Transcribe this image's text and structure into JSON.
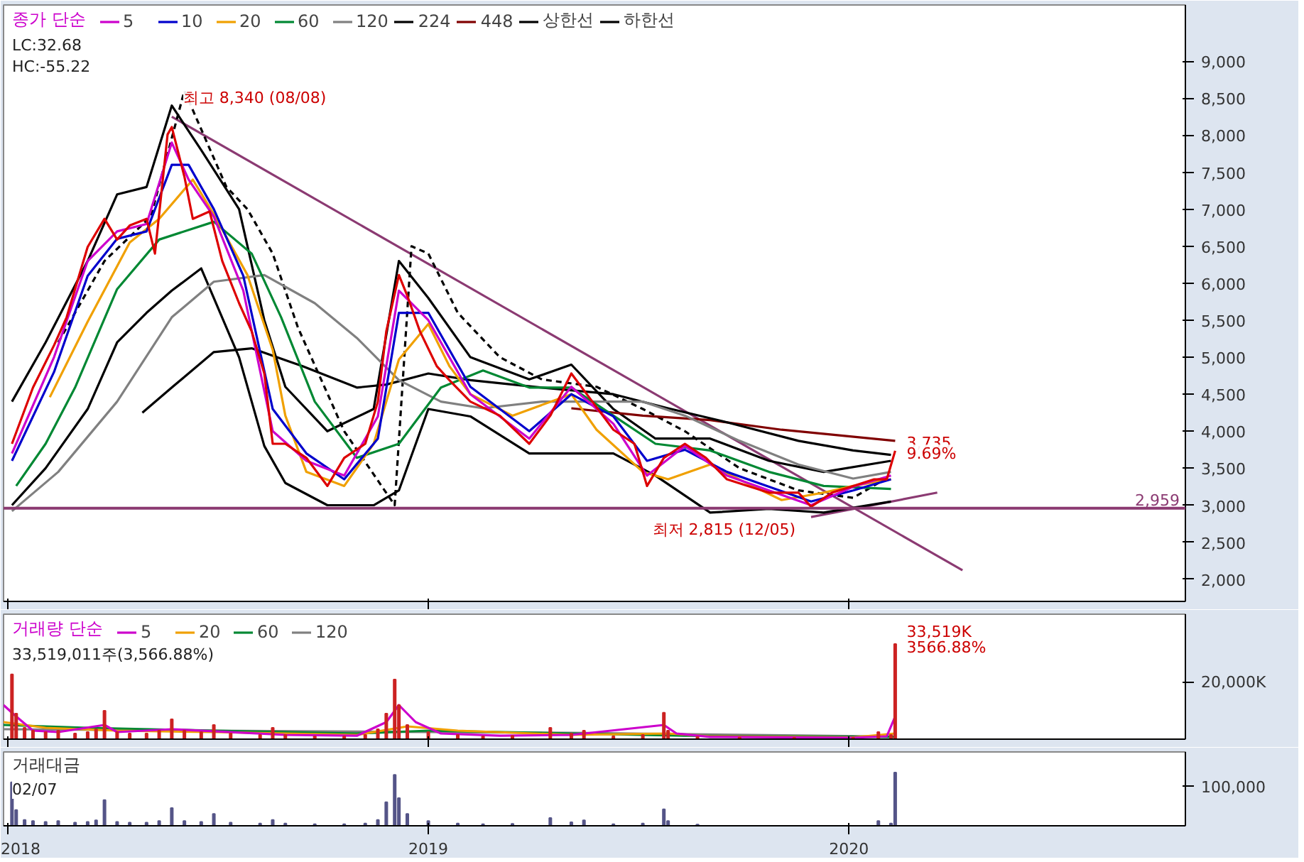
{
  "chart_data": [
    {
      "type": "line",
      "legend_title": "종가 단순",
      "legend": "top left",
      "xlim": [
        2017.99,
        2020.8
      ],
      "xticks": [
        2018,
        2019,
        2020
      ],
      "tick_labels": "y",
      "ylim": [
        1700,
        9760
      ],
      "yticks": [
        {
          "value": 2000,
          "label": "2,000"
        },
        {
          "value": 2500,
          "label": "2,500"
        },
        {
          "value": 3000,
          "label": "3,000"
        },
        {
          "value": 3500,
          "label": "3,500"
        },
        {
          "value": 4000,
          "label": "4,000"
        },
        {
          "value": 4500,
          "label": "4,500"
        },
        {
          "value": 5000,
          "label": "5,000"
        },
        {
          "value": 5500,
          "label": "5,500"
        },
        {
          "value": 6000,
          "label": "6,000"
        },
        {
          "value": 6500,
          "label": "6,500"
        },
        {
          "value": 7000,
          "label": "7,000"
        },
        {
          "value": 7500,
          "label": "7,500"
        },
        {
          "value": 8000,
          "label": "8,000"
        },
        {
          "value": 8500,
          "label": "8,500"
        },
        {
          "value": 9000,
          "label": "9,000"
        }
      ],
      "series": [
        {
          "color": "#dd0000",
          "x": [
            2018.01,
            2018.06,
            2018.11,
            2018.14,
            2018.19,
            2018.23,
            2018.26,
            2018.29,
            2018.33,
            2018.35,
            2018.38,
            2018.39,
            2018.42,
            2018.44,
            2018.48,
            2018.51,
            2018.55,
            2018.58,
            2018.61,
            2018.63,
            2018.66,
            2018.71,
            2018.76,
            2018.8,
            2018.85,
            2018.88,
            2018.9,
            2018.93,
            2018.95,
            2018.98,
            2019.02,
            2019.05,
            2019.1,
            2019.17,
            2019.24,
            2019.29,
            2019.34,
            2019.39,
            2019.44,
            2019.49,
            2019.52,
            2019.56,
            2019.61,
            2019.66,
            2019.71,
            2019.76,
            2019.81,
            2019.88,
            2019.91,
            2019.96,
            2020.01,
            2020.06,
            2020.09,
            2020.11
          ],
          "values": [
            3830,
            4590,
            5160,
            5540,
            6490,
            6870,
            6590,
            6780,
            6870,
            6400,
            8010,
            8110,
            7440,
            6870,
            6970,
            6300,
            5730,
            5350,
            4780,
            3830,
            3830,
            3640,
            3260,
            3640,
            3830,
            4400,
            5350,
            6110,
            5830,
            5350,
            4880,
            4690,
            4400,
            4210,
            3830,
            4210,
            4780,
            4400,
            4020,
            3830,
            3260,
            3640,
            3830,
            3640,
            3350,
            3260,
            3170,
            3170,
            2980,
            3170,
            3260,
            3350,
            3350,
            3735
          ]
        },
        {
          "name": "5",
          "color": "#cc00cc",
          "x": [
            2018.01,
            2018.11,
            2018.19,
            2018.26,
            2018.33,
            2018.39,
            2018.43,
            2018.49,
            2018.56,
            2018.63,
            2018.71,
            2018.8,
            2018.88,
            2018.93,
            2019.0,
            2019.1,
            2019.24,
            2019.34,
            2019.44,
            2019.52,
            2019.61,
            2019.71,
            2019.81,
            2019.91,
            2020.01,
            2020.1
          ],
          "values": [
            3700,
            5000,
            6300,
            6700,
            6800,
            7900,
            7400,
            6900,
            5900,
            4000,
            3600,
            3400,
            4200,
            5900,
            5500,
            4500,
            3900,
            4600,
            4100,
            3400,
            3800,
            3400,
            3200,
            3000,
            3250,
            3400
          ]
        },
        {
          "name": "10",
          "color": "#0000cc",
          "x": [
            2018.01,
            2018.11,
            2018.19,
            2018.26,
            2018.33,
            2018.39,
            2018.43,
            2018.49,
            2018.56,
            2018.63,
            2018.71,
            2018.8,
            2018.88,
            2018.93,
            2019.0,
            2019.1,
            2019.24,
            2019.34,
            2019.44,
            2019.52,
            2019.61,
            2019.71,
            2019.81,
            2019.91,
            2020.01,
            2020.1
          ],
          "values": [
            3600,
            4800,
            6100,
            6600,
            6700,
            7600,
            7600,
            7000,
            6100,
            4300,
            3700,
            3350,
            3900,
            5600,
            5600,
            4600,
            4000,
            4500,
            4200,
            3600,
            3750,
            3450,
            3250,
            3050,
            3200,
            3350
          ]
        },
        {
          "name": "20",
          "color": "#f0a000",
          "x": [
            2018.1,
            2018.19,
            2018.29,
            2018.36,
            2018.44,
            2018.49,
            2018.57,
            2018.63,
            2018.66,
            2018.71,
            2018.8,
            2018.87,
            2018.93,
            2019.0,
            2019.05,
            2019.1,
            2019.2,
            2019.34,
            2019.4,
            2019.51,
            2019.57,
            2019.67,
            2019.77,
            2019.84,
            2019.94,
            2020.01,
            2020.1
          ],
          "values": [
            4460,
            5480,
            6550,
            6870,
            7400,
            6930,
            6110,
            5100,
            4210,
            3450,
            3260,
            3830,
            4970,
            5450,
            4880,
            4500,
            4210,
            4500,
            4020,
            3450,
            3350,
            3550,
            3260,
            3070,
            3170,
            3260,
            3350
          ]
        },
        {
          "name": "60",
          "color": "#008833",
          "x": [
            2018.02,
            2018.09,
            2018.16,
            2018.26,
            2018.36,
            2018.49,
            2018.58,
            2018.65,
            2018.73,
            2018.83,
            2018.93,
            2019.03,
            2019.13,
            2019.24,
            2019.34,
            2019.44,
            2019.54,
            2019.67,
            2019.81,
            2019.94,
            2020.1
          ],
          "values": [
            3260,
            3830,
            4590,
            5920,
            6590,
            6830,
            6400,
            5540,
            4400,
            3640,
            3830,
            4590,
            4820,
            4590,
            4590,
            4210,
            3830,
            3740,
            3450,
            3260,
            3220
          ]
        },
        {
          "name": "120",
          "color": "#808080",
          "x": [
            2018.01,
            2018.12,
            2018.26,
            2018.39,
            2018.49,
            2018.61,
            2018.73,
            2018.83,
            2018.93,
            2019.03,
            2019.13,
            2019.27,
            2019.4,
            2019.51,
            2019.61,
            2019.74,
            2019.88,
            2020.01,
            2020.1
          ],
          "values": [
            2920,
            3450,
            4400,
            5540,
            6020,
            6110,
            5730,
            5260,
            4690,
            4400,
            4310,
            4400,
            4400,
            4400,
            4210,
            3870,
            3550,
            3360,
            3450
          ]
        },
        {
          "name": "224",
          "color": "#000000",
          "x": [
            2018.32,
            2018.39,
            2018.49,
            2018.58,
            2018.7,
            2018.83,
            2018.9,
            2019.0,
            2019.1,
            2019.27,
            2019.44,
            2019.57,
            2019.71,
            2019.88,
            2020.01,
            2020.1
          ],
          "values": [
            4250,
            4590,
            5070,
            5120,
            4880,
            4590,
            4630,
            4780,
            4690,
            4590,
            4500,
            4310,
            4120,
            3870,
            3740,
            3680
          ]
        },
        {
          "name": "448",
          "color": "#800000",
          "x": [
            2019.34,
            2019.51,
            2019.67,
            2019.84,
            2020.11
          ],
          "values": [
            4310,
            4210,
            4150,
            4020,
            3870
          ]
        },
        {
          "name": "상한선",
          "color": "#000000",
          "x": [
            2018.01,
            2018.09,
            2018.19,
            2018.26,
            2018.33,
            2018.39,
            2018.46,
            2018.55,
            2018.61,
            2018.66,
            2018.76,
            2018.87,
            2018.93,
            2019.0,
            2019.1,
            2019.24,
            2019.34,
            2019.44,
            2019.54,
            2019.67,
            2019.81,
            2019.94,
            2020.1
          ],
          "values": [
            4400,
            5200,
            6300,
            7200,
            7300,
            8400,
            7800,
            7000,
            5500,
            4600,
            4000,
            4300,
            6300,
            5800,
            5000,
            4700,
            4900,
            4300,
            3900,
            3900,
            3600,
            3450,
            3600
          ]
        },
        {
          "name": "하한선",
          "color": "#000000",
          "x": [
            2018.01,
            2018.09,
            2018.19,
            2018.26,
            2018.33,
            2018.39,
            2018.46,
            2018.55,
            2018.61,
            2018.66,
            2018.76,
            2018.87,
            2018.93,
            2019.0,
            2019.1,
            2019.24,
            2019.34,
            2019.44,
            2019.54,
            2019.67,
            2019.81,
            2019.94,
            2020.1
          ],
          "values": [
            3000,
            3500,
            4300,
            5200,
            5600,
            5900,
            6200,
            5000,
            3800,
            3300,
            3000,
            3000,
            3200,
            4300,
            4200,
            3700,
            3700,
            3700,
            3400,
            2900,
            2950,
            2900,
            3050
          ]
        },
        {
          "color": "#000000",
          "line_style": "dashed",
          "x": [
            2018.12,
            2018.23,
            2018.34,
            2018.42,
            2018.52,
            2018.57,
            2018.63,
            2018.69,
            2018.8,
            2018.92,
            2018.96,
            2019.0,
            2019.07,
            2019.17,
            2019.27,
            2019.4,
            2019.51,
            2019.61,
            2019.74,
            2019.88,
            2020.01,
            2020.1
          ],
          "values": [
            5200,
            6300,
            6900,
            8600,
            7300,
            7000,
            6400,
            5400,
            4000,
            3000,
            6500,
            6400,
            5600,
            5000,
            4700,
            4600,
            4300,
            4000,
            3500,
            3200,
            3100,
            3400
          ]
        },
        {
          "color": "#8b3a72",
          "x": [
            2018.39,
            2020.27
          ],
          "values": [
            8250,
            2120
          ]
        },
        {
          "color": "#8b3a72",
          "x": [
            2019.91,
            2020.21
          ],
          "values": [
            2840,
            3170
          ]
        }
      ],
      "ref_lines": [
        {
          "axis": "y",
          "value": 2959,
          "label": "2,959",
          "color": "#8b3a72"
        }
      ],
      "annotations": [
        "LC:32.68",
        "HC:-55.22",
        {
          "text": "최고 8,340 (08/08)",
          "x": 2018.39,
          "y": 8340
        },
        {
          "text": "최저 2,815 (12/05)",
          "x": 2019.9,
          "y": 2815
        },
        {
          "text": "3,735",
          "x": 2020.11,
          "y": 3735
        },
        {
          "text": "9.69%",
          "x": 2020.11,
          "y": 3530
        }
      ]
    },
    {
      "type": "bar",
      "legend_title": "거래량 단순",
      "legend": "top left",
      "xlim": [
        2017.99,
        2020.8
      ],
      "xticks": [
        2018,
        2019,
        2020
      ],
      "tick_labels": "y",
      "ylim": [
        0,
        44000
      ],
      "yticks": [
        {
          "value": 20000,
          "label": "20,000K"
        }
      ],
      "series": [
        {
          "color": "#cc2222",
          "x": [
            2018.01,
            2018.02,
            2018.04,
            2018.06,
            2018.09,
            2018.12,
            2018.16,
            2018.19,
            2018.21,
            2018.23,
            2018.26,
            2018.29,
            2018.33,
            2018.36,
            2018.39,
            2018.42,
            2018.46,
            2018.49,
            2018.53,
            2018.6,
            2018.63,
            2018.66,
            2018.73,
            2018.8,
            2018.85,
            2018.88,
            2018.9,
            2018.92,
            2018.93,
            2018.95,
            2019.0,
            2019.07,
            2019.13,
            2019.2,
            2019.29,
            2019.34,
            2019.37,
            2019.44,
            2019.51,
            2019.56,
            2019.57,
            2019.64,
            2019.74,
            2019.87,
            2020.01,
            2020.07,
            2020.1,
            2020.11
          ],
          "values": [
            22800,
            9000,
            4000,
            3000,
            2500,
            3000,
            2000,
            2500,
            3500,
            10000,
            2500,
            2000,
            2000,
            3000,
            7000,
            3000,
            2500,
            5000,
            2000,
            1500,
            4000,
            1500,
            1000,
            1000,
            1500,
            3500,
            9000,
            21000,
            12000,
            5000,
            2500,
            1500,
            1000,
            1200,
            4000,
            2000,
            3000,
            1000,
            1500,
            9300,
            3000,
            800,
            600,
            500,
            500,
            2500,
            1500,
            33519
          ]
        },
        {
          "name": "5",
          "type": "line",
          "color": "#cc00cc",
          "x": [
            2017.99,
            2018.02,
            2018.06,
            2018.12,
            2018.23,
            2018.26,
            2018.39,
            2018.49,
            2018.66,
            2018.83,
            2018.9,
            2018.93,
            2018.97,
            2019.03,
            2019.17,
            2019.34,
            2019.56,
            2019.59,
            2019.67,
            2020.01,
            2020.09,
            2020.11
          ],
          "values": [
            12000,
            8000,
            3000,
            2500,
            5000,
            2500,
            3500,
            2800,
            1500,
            1200,
            6000,
            12000,
            6000,
            2000,
            1200,
            1500,
            5000,
            2000,
            800,
            500,
            1000,
            8000
          ]
        },
        {
          "name": "20",
          "type": "line",
          "color": "#f0a000",
          "x": [
            2017.99,
            2018.09,
            2018.26,
            2018.49,
            2018.83,
            2018.95,
            2019.07,
            2019.34,
            2019.57,
            2019.67,
            2020.01,
            2020.11
          ],
          "values": [
            6000,
            4000,
            3000,
            2500,
            1500,
            4500,
            3000,
            1500,
            2000,
            1000,
            600,
            2000
          ]
        },
        {
          "name": "60",
          "type": "line",
          "color": "#008833",
          "x": [
            2017.99,
            2018.19,
            2018.49,
            2018.83,
            2019.0,
            2019.34,
            2019.61,
            2020.11
          ],
          "values": [
            5000,
            4000,
            3000,
            2000,
            3000,
            2000,
            1200,
            800
          ]
        },
        {
          "name": "120",
          "type": "line",
          "color": "#808080",
          "x": [
            2017.99,
            2018.49,
            2019.0,
            2019.34,
            2020.11
          ],
          "values": [
            3500,
            3000,
            2500,
            2200,
            900
          ]
        }
      ],
      "annotations": [
        "33,519,011주(3,566.88%)",
        {
          "text": "33,519K",
          "x": 2020.11,
          "y": 33519
        },
        {
          "text": "3566.88%",
          "x": 2020.11,
          "y": 28000
        }
      ]
    },
    {
      "type": "bar",
      "title": "거래대금",
      "xlim": [
        2017.99,
        2020.8
      ],
      "xticks": [
        2018,
        2019,
        2020
      ],
      "ylim": [
        0,
        187000
      ],
      "yticks": [
        {
          "value": 100000,
          "label": "100,000"
        }
      ],
      "series": [
        {
          "color": "#555588",
          "x": [
            2018.01,
            2018.02,
            2018.04,
            2018.06,
            2018.09,
            2018.12,
            2018.16,
            2018.19,
            2018.21,
            2018.23,
            2018.26,
            2018.29,
            2018.33,
            2018.36,
            2018.39,
            2018.42,
            2018.46,
            2018.49,
            2018.53,
            2018.6,
            2018.63,
            2018.66,
            2018.73,
            2018.8,
            2018.85,
            2018.88,
            2018.9,
            2018.92,
            2018.93,
            2018.95,
            2019.0,
            2019.07,
            2019.13,
            2019.2,
            2019.29,
            2019.34,
            2019.37,
            2019.44,
            2019.51,
            2019.56,
            2019.57,
            2019.64,
            2019.74,
            2019.87,
            2020.01,
            2020.07,
            2020.1,
            2020.11
          ],
          "values": [
            110000,
            40000,
            15000,
            12000,
            10000,
            12000,
            8000,
            10000,
            14000,
            65000,
            10000,
            8000,
            8000,
            12000,
            45000,
            12000,
            10000,
            30000,
            8000,
            6000,
            15000,
            6000,
            4000,
            4000,
            6000,
            15000,
            60000,
            129000,
            70000,
            30000,
            12000,
            6000,
            4000,
            5000,
            20000,
            9000,
            14000,
            4000,
            6000,
            42000,
            12000,
            3000,
            null,
            null,
            null,
            12000,
            6000,
            135000
          ]
        }
      ],
      "annotations": [
        "02/07"
      ]
    }
  ]
}
